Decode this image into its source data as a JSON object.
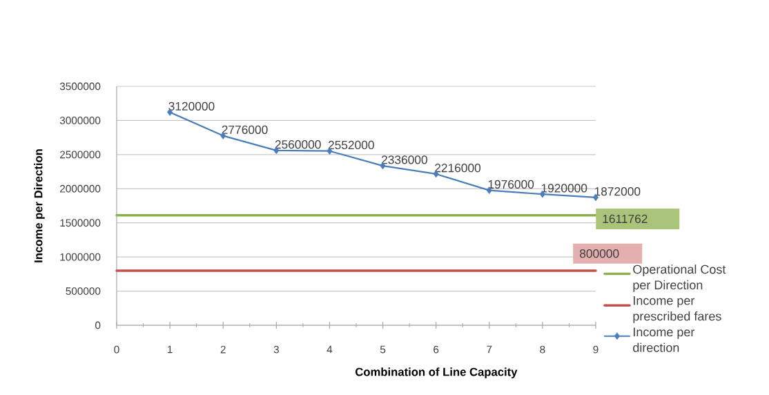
{
  "chart_data": {
    "type": "line",
    "xlabel": "Combination of Line Capacity",
    "ylabel": "Income per Direction",
    "xlim": [
      0,
      9
    ],
    "ylim": [
      0,
      3500000
    ],
    "xticks": [
      0,
      1,
      2,
      3,
      4,
      5,
      6,
      7,
      8,
      9
    ],
    "yticks": [
      0,
      500000,
      1000000,
      1500000,
      2000000,
      2500000,
      3000000,
      3500000
    ],
    "grid": "y",
    "legend": "bottom right",
    "series": [
      {
        "name": "Operational Cost per Direction",
        "color": "#8eb04e",
        "x": [
          0,
          9
        ],
        "values": [
          1611762,
          1611762
        ],
        "marker": "none",
        "value_labels": [
          null,
          "1611762"
        ]
      },
      {
        "name": "Income per prescribed fares",
        "color": "#c0504d",
        "x": [
          0,
          9
        ],
        "values": [
          800000,
          800000
        ],
        "marker": "none",
        "value_labels": [
          null,
          "800000"
        ]
      },
      {
        "name": "Income per direction",
        "color": "#4a7ebb",
        "x": [
          1,
          2,
          3,
          4,
          5,
          6,
          7,
          8,
          9
        ],
        "values": [
          3120000,
          2776000,
          2560000,
          2552000,
          2336000,
          2216000,
          1976000,
          1920000,
          1872000
        ],
        "marker": "diamond",
        "value_labels": [
          "3120000",
          "2776000",
          "2560000",
          "2552000",
          "2336000",
          "2216000",
          "1976000",
          "1920000",
          "1872000"
        ]
      }
    ]
  }
}
